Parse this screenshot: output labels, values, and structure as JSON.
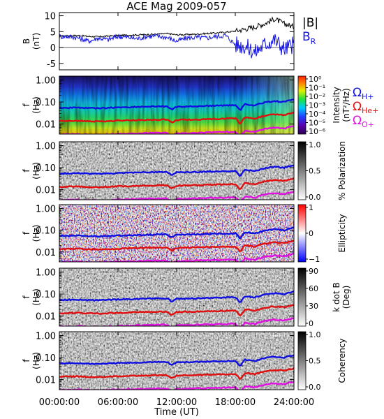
{
  "figure": {
    "title": "ACE Mag 2009-057",
    "time_axis": {
      "label": "Time (UT)",
      "ticks": [
        "00:00:00",
        "06:00:00",
        "12:00:00",
        "18:00:00",
        "24:00:00"
      ],
      "range_hours": [
        0,
        24
      ]
    },
    "colors": {
      "B_total": "#000000",
      "B_R": "#1010e0",
      "H": "#1010e0",
      "He": "#e01010",
      "O": "#e010e0"
    }
  },
  "chart_data": [
    {
      "type": "line",
      "name": "magnetic-field",
      "ylabel": "B",
      "yunit": "(nT)",
      "ylim": [
        -7,
        11
      ],
      "yticks": [
        10,
        5,
        0,
        -5
      ],
      "x_hours": [
        0,
        1,
        2,
        3,
        4,
        5,
        6,
        7,
        8,
        9,
        10,
        11,
        12,
        13,
        14,
        15,
        16,
        17,
        18,
        19,
        20,
        21,
        22,
        23,
        24
      ],
      "series": [
        {
          "name": "|B|",
          "values": [
            3.6,
            3.7,
            3.8,
            3.5,
            3.4,
            3.6,
            3.8,
            3.9,
            4.0,
            4.1,
            4.2,
            4.4,
            4.0,
            4.1,
            4.2,
            4.4,
            4.6,
            4.8,
            5.2,
            5.8,
            6.5,
            7.5,
            9.0,
            7.5,
            6.5
          ]
        },
        {
          "name": "B",
          "subscript": "R",
          "values": [
            3.5,
            3.5,
            3.0,
            2.0,
            3.0,
            2.5,
            3.5,
            3.2,
            2.8,
            3.5,
            3.6,
            3.2,
            2.0,
            3.0,
            3.2,
            3.0,
            3.5,
            3.8,
            1.0,
            0.5,
            -1.5,
            1.0,
            2.5,
            -0.5,
            1.0
          ]
        }
      ]
    },
    {
      "type": "heatmap",
      "name": "spectrogram-intensity",
      "ylabel": "f",
      "yunit": "(Hz)",
      "yticks": [
        "1.00",
        "0.10",
        "0.01"
      ],
      "colorbar": {
        "label": "Intensity",
        "unit": "(nT²/Hz)",
        "ticks": [
          "10⁰",
          "10⁻¹",
          "10⁻²",
          "10⁻³",
          "10⁻⁴",
          "10⁻⁵",
          "10⁻⁶"
        ]
      },
      "legend": [
        {
          "symbol": "Ω",
          "ion": "H+"
        },
        {
          "symbol": "Ω",
          "ion": "He+"
        },
        {
          "symbol": "Ω",
          "ion": "O+"
        }
      ]
    },
    {
      "type": "heatmap",
      "name": "spectrogram-polarization",
      "ylabel": "f",
      "yunit": "(Hz)",
      "yticks": [
        "1.00",
        "0.10",
        "0.01"
      ],
      "colorbar": {
        "label": "% Polarization",
        "ticks": [
          "1.0",
          "0.5",
          "0.0"
        ]
      }
    },
    {
      "type": "heatmap",
      "name": "spectrogram-ellipticity",
      "ylabel": "f",
      "yunit": "(Hz)",
      "yticks": [
        "1.00",
        "0.10",
        "0.01"
      ],
      "colorbar": {
        "label": "Ellipticity",
        "ticks": [
          "1",
          "0",
          "−1"
        ]
      }
    },
    {
      "type": "heatmap",
      "name": "spectrogram-kdotb",
      "ylabel": "f",
      "yunit": "(Hz)",
      "yticks": [
        "1.00",
        "0.10",
        "0.01"
      ],
      "colorbar": {
        "label": "k dot B",
        "unit": "(Deg)",
        "ticks": [
          "90",
          "60",
          "30",
          "0"
        ]
      }
    },
    {
      "type": "heatmap",
      "name": "spectrogram-coherency",
      "ylabel": "f",
      "yunit": "(Hz)",
      "yticks": [
        "1.00",
        "0.10",
        "0.01"
      ],
      "colorbar": {
        "label": "Coherency",
        "ticks": [
          "1.0",
          "0.5",
          "0.0"
        ]
      }
    }
  ],
  "cyclotron": {
    "x_hours": [
      0,
      1,
      2,
      3,
      4,
      5,
      6,
      7,
      8,
      9,
      10,
      11,
      11.5,
      12,
      13,
      14,
      15,
      16,
      17,
      18,
      18.5,
      19,
      20,
      21,
      22,
      23,
      24
    ],
    "H_plus_hz": [
      0.054,
      0.055,
      0.056,
      0.053,
      0.052,
      0.054,
      0.057,
      0.058,
      0.06,
      0.062,
      0.063,
      0.064,
      0.045,
      0.061,
      0.062,
      0.064,
      0.066,
      0.068,
      0.07,
      0.072,
      0.04,
      0.08,
      0.07,
      0.095,
      0.11,
      0.1,
      0.13
    ]
  }
}
